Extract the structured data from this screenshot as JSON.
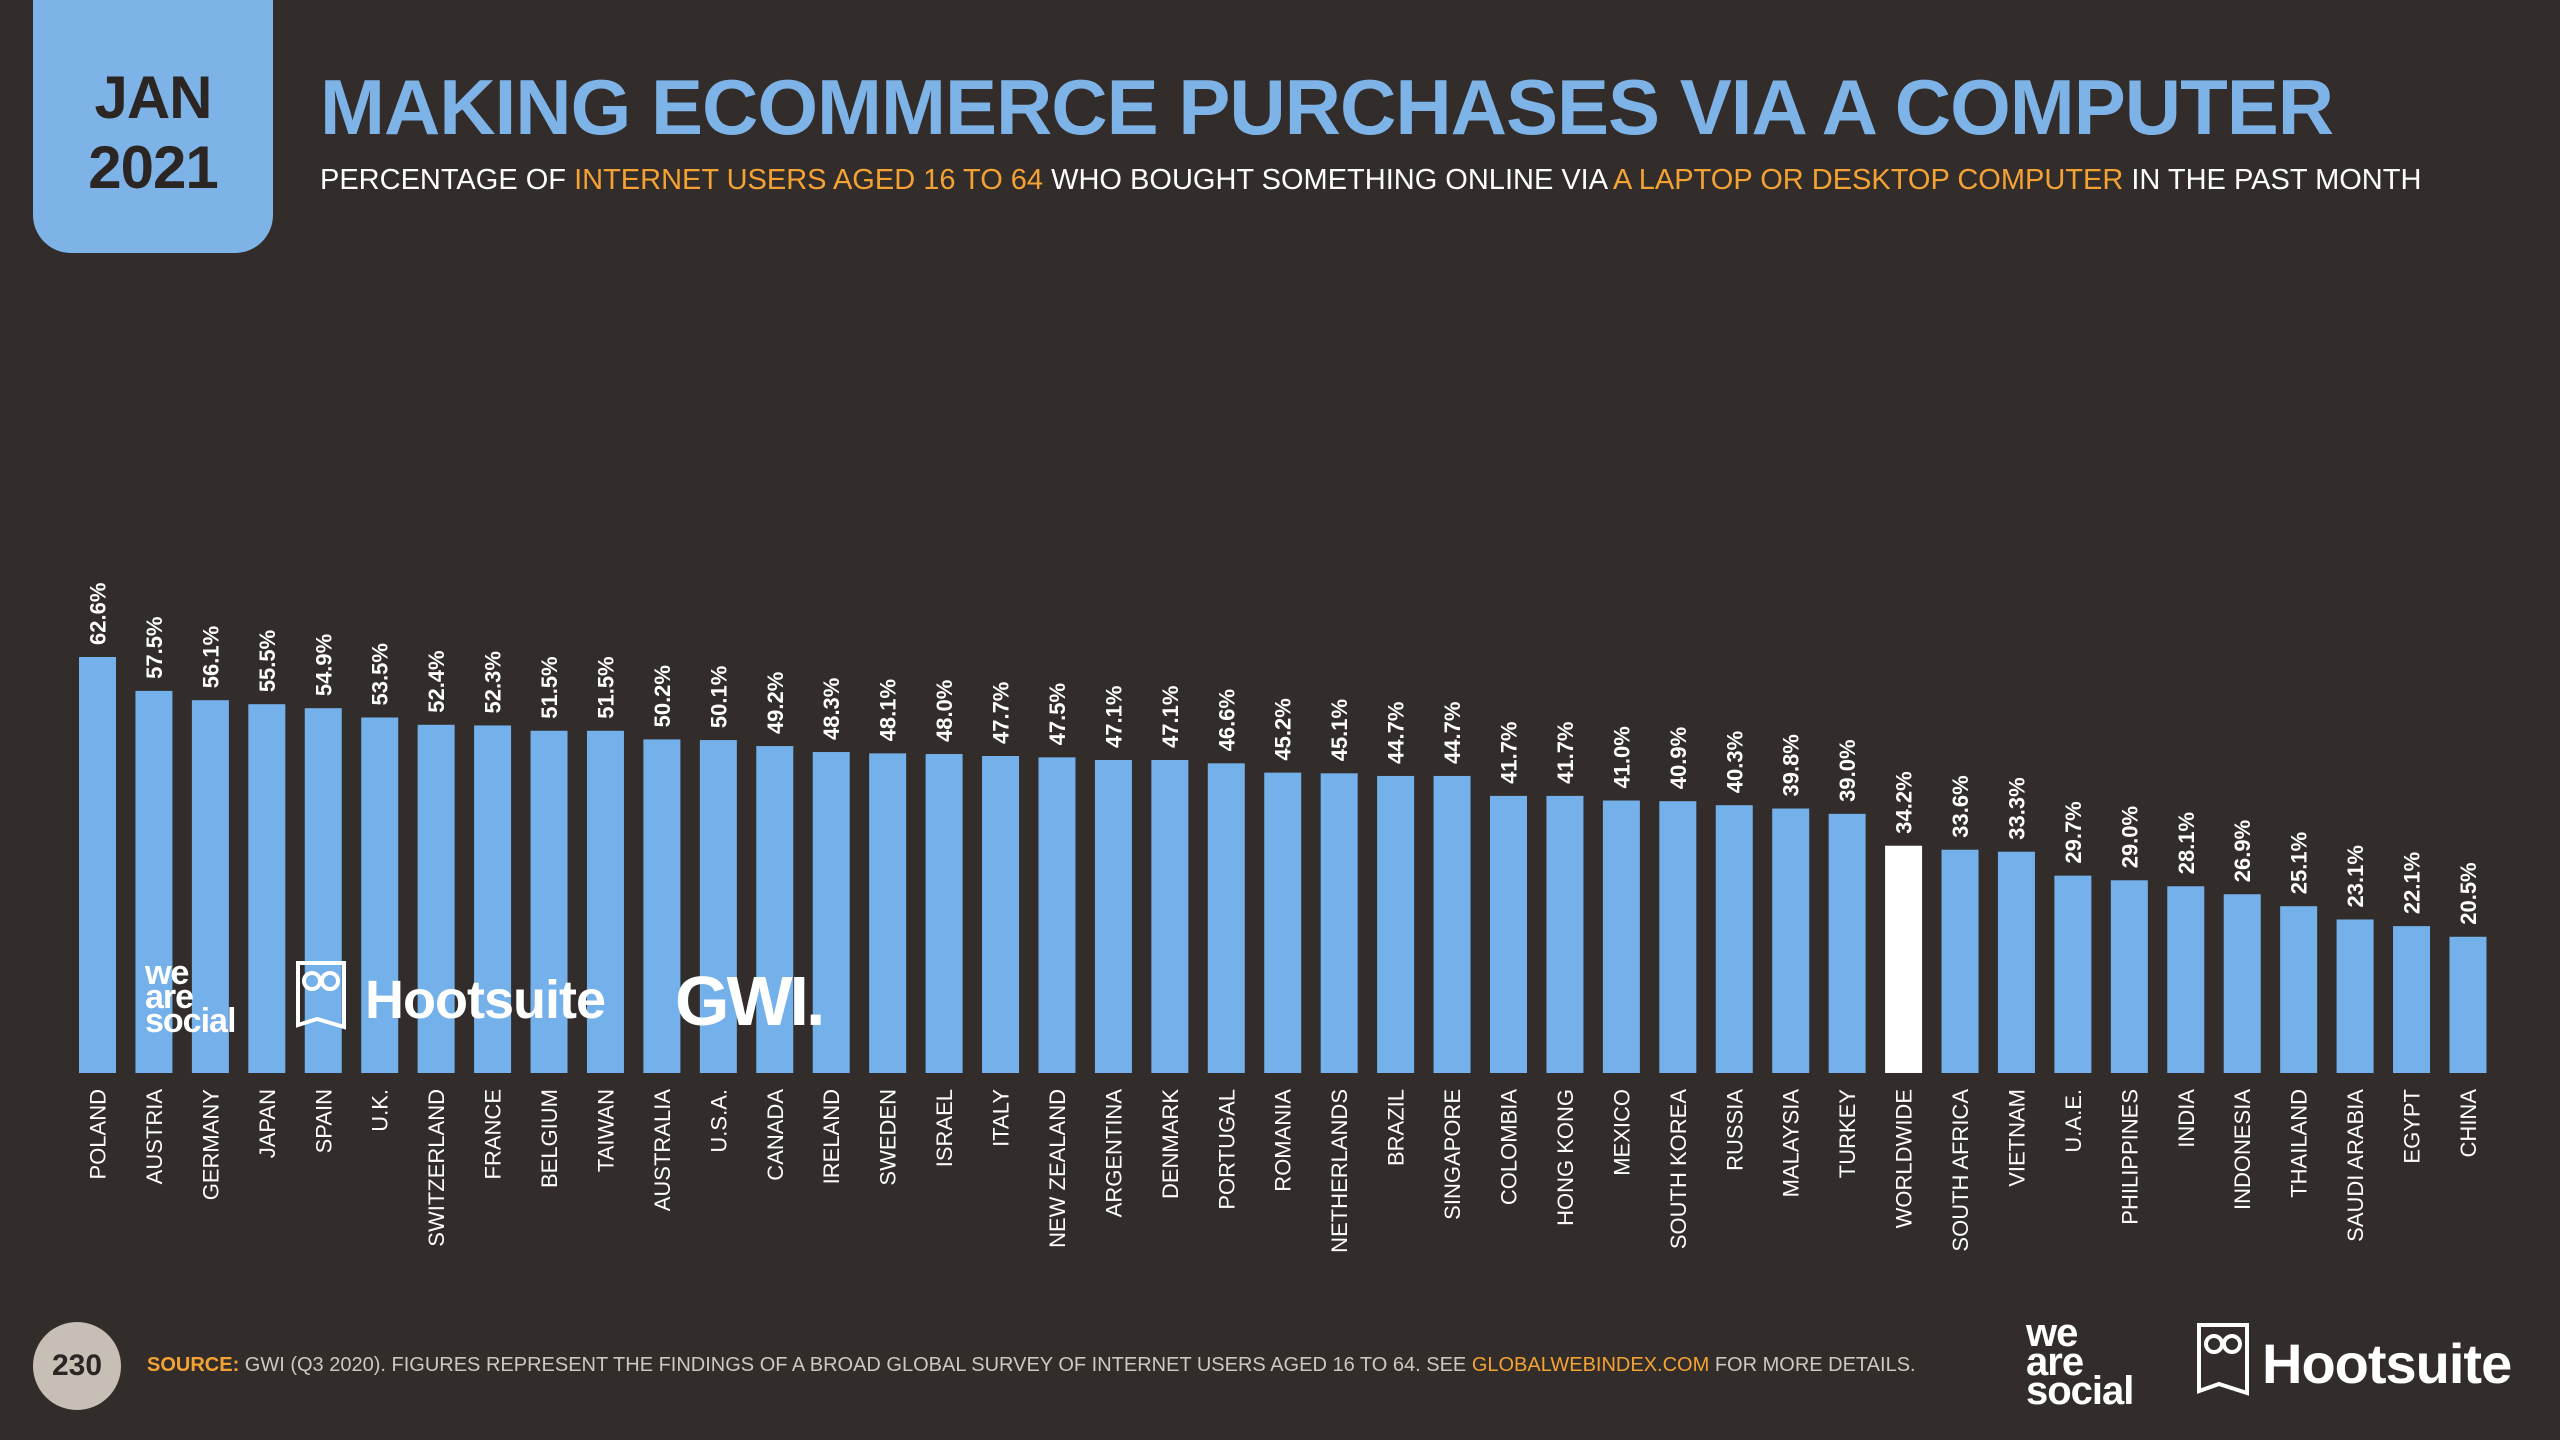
{
  "badge": {
    "month": "JAN",
    "year": "2021"
  },
  "title": "MAKING ECOMMERCE PURCHASES VIA A COMPUTER",
  "subtitle": {
    "p1": "PERCENTAGE OF ",
    "h1": "INTERNET USERS AGED 16 TO 64",
    "p2": " WHO BOUGHT SOMETHING ONLINE VIA ",
    "h2": "A LAPTOP OR DESKTOP COMPUTER",
    "p3": " IN THE PAST MONTH"
  },
  "colors": {
    "bar": "#74b0ea",
    "highlight_bar": "#ffffff",
    "background": "#322d2a",
    "accent": "#f4a234"
  },
  "chart_data": {
    "type": "bar",
    "title": "MAKING ECOMMERCE PURCHASES VIA A COMPUTER",
    "ylabel": "",
    "ylim": [
      0,
      62.6
    ],
    "value_format": "percent_one_decimal",
    "highlight_category": "WORLDWIDE",
    "categories": [
      "POLAND",
      "AUSTRIA",
      "GERMANY",
      "JAPAN",
      "SPAIN",
      "U.K.",
      "SWITZERLAND",
      "FRANCE",
      "BELGIUM",
      "TAIWAN",
      "AUSTRALIA",
      "U.S.A.",
      "CANADA",
      "IRELAND",
      "SWEDEN",
      "ISRAEL",
      "ITALY",
      "NEW ZEALAND",
      "ARGENTINA",
      "DENMARK",
      "PORTUGAL",
      "ROMANIA",
      "NETHERLANDS",
      "BRAZIL",
      "SINGAPORE",
      "COLOMBIA",
      "HONG KONG",
      "MEXICO",
      "SOUTH KOREA",
      "RUSSIA",
      "MALAYSIA",
      "TURKEY",
      "WORLDWIDE",
      "SOUTH AFRICA",
      "VIETNAM",
      "U.A.E.",
      "PHILIPPINES",
      "INDIA",
      "INDONESIA",
      "THAILAND",
      "SAUDI ARABIA",
      "EGYPT",
      "CHINA"
    ],
    "values": [
      62.6,
      57.5,
      56.1,
      55.5,
      54.9,
      53.5,
      52.4,
      52.3,
      51.5,
      51.5,
      50.2,
      50.1,
      49.2,
      48.3,
      48.1,
      48.0,
      47.7,
      47.5,
      47.1,
      47.1,
      46.6,
      45.2,
      45.1,
      44.7,
      44.7,
      41.7,
      41.7,
      41.0,
      40.9,
      40.3,
      39.8,
      39.0,
      34.2,
      33.6,
      33.3,
      29.7,
      29.0,
      28.1,
      26.9,
      25.1,
      23.1,
      22.1,
      20.5
    ]
  },
  "logos": {
    "we": "we",
    "are": "are",
    "social": "social",
    "hootsuite": "Hootsuite",
    "gwi": "GWI."
  },
  "footer": {
    "page_number": "230",
    "source_label": "SOURCE:",
    "source_text": " GWI (Q3 2020). FIGURES REPRESENT THE FINDINGS OF A BROAD GLOBAL SURVEY OF INTERNET USERS AGED 16 TO 64. SEE ",
    "source_url": "GLOBALWEBINDEX.COM",
    "source_tail": " FOR MORE DETAILS."
  }
}
